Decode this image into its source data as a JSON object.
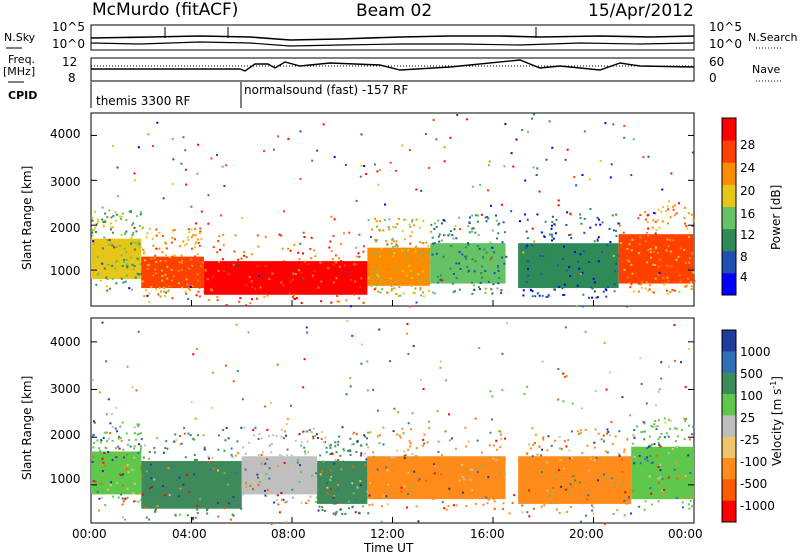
{
  "header": {
    "title": "McMurdo (fitACF)",
    "beam": "Beam 02",
    "date": "15/Apr/2012"
  },
  "top_panel": {
    "left_labels": {
      "nsky": "N.Sky",
      "freq": "Freq.",
      "freq_unit": "[MHz]",
      "cpid": "CPID"
    },
    "right_labels": {
      "nsearch": "N.Search",
      "nave": "Nave"
    },
    "nsky_ticks": [
      "10^5",
      "10^0"
    ],
    "freq_ticks": [
      "12",
      "8"
    ],
    "nave_ticks": [
      "60",
      "0"
    ],
    "cpid_segments": [
      "themis 3300 RF",
      "normalsound (fast) -157 RF"
    ]
  },
  "chart_data": [
    {
      "type": "heatmap",
      "panel": "power",
      "ylabel": "Slant Range [km]",
      "xlabel": "Time UT",
      "x_ticks": [
        "00:00",
        "04:00",
        "08:00",
        "12:00",
        "16:00",
        "20:00",
        "00:00"
      ],
      "y_ticks": [
        1000,
        2000,
        3000,
        4000
      ],
      "ylim": [
        200,
        4500
      ],
      "colorbar": {
        "label": "Power [dB]",
        "ticks": [
          "28",
          "24",
          "20",
          "16",
          "12",
          "8",
          "4"
        ],
        "colors": [
          "#0000ff",
          "#1f4fb0",
          "#2e8b57",
          "#66c266",
          "#e6c619",
          "#ff8c00",
          "#ff4000",
          "#ff0000"
        ]
      },
      "scatter_bands": [
        {
          "t0": 0.0,
          "t1": 2.0,
          "r0": 800,
          "r1": 1700,
          "level": 4
        },
        {
          "t0": 2.0,
          "t1": 4.5,
          "r0": 600,
          "r1": 1300,
          "level": 6
        },
        {
          "t0": 4.5,
          "t1": 11.0,
          "r0": 450,
          "r1": 1200,
          "level": 7
        },
        {
          "t0": 11.0,
          "t1": 13.5,
          "r0": 650,
          "r1": 1500,
          "level": 5
        },
        {
          "t0": 13.5,
          "t1": 16.5,
          "r0": 700,
          "r1": 1600,
          "level": 3
        },
        {
          "t0": 17.0,
          "t1": 21.0,
          "r0": 600,
          "r1": 1600,
          "level": 2
        },
        {
          "t0": 21.0,
          "t1": 24.0,
          "r0": 700,
          "r1": 1800,
          "level": 6
        }
      ]
    },
    {
      "type": "heatmap",
      "panel": "velocity",
      "ylabel": "Slant Range [km]",
      "xlabel": "Time UT",
      "x_ticks": [
        "00:00",
        "04:00",
        "08:00",
        "12:00",
        "16:00",
        "20:00",
        "00:00"
      ],
      "y_ticks": [
        1000,
        2000,
        3000,
        4000
      ],
      "ylim": [
        200,
        4500
      ],
      "colorbar": {
        "label": "Velocity [m s",
        "label_sup": "-1",
        "label_end": "]",
        "ticks": [
          "1000",
          "500",
          "100",
          "25",
          "-25",
          "-100",
          "-500",
          "-1000"
        ],
        "colors": [
          "#1e3c9b",
          "#2f6fb7",
          "#3e8a5a",
          "#5fc84c",
          "#bfbfbf",
          "#f0c46a",
          "#ff8c1a",
          "#ff5a00",
          "#ff0000"
        ]
      },
      "scatter_bands": [
        {
          "t0": 0.0,
          "t1": 2.0,
          "r0": 800,
          "r1": 1700,
          "color": "#5fc84c"
        },
        {
          "t0": 2.0,
          "t1": 6.0,
          "r0": 500,
          "r1": 1500,
          "color": "#3e8a5a"
        },
        {
          "t0": 6.0,
          "t1": 9.0,
          "r0": 800,
          "r1": 1600,
          "color": "#bfbfbf"
        },
        {
          "t0": 9.0,
          "t1": 11.0,
          "r0": 600,
          "r1": 1500,
          "color": "#3e8a5a"
        },
        {
          "t0": 11.0,
          "t1": 16.5,
          "r0": 700,
          "r1": 1600,
          "color": "#ff8c1a"
        },
        {
          "t0": 17.0,
          "t1": 21.5,
          "r0": 600,
          "r1": 1600,
          "color": "#ff8c1a"
        },
        {
          "t0": 21.5,
          "t1": 24.0,
          "r0": 700,
          "r1": 1800,
          "color": "#5fc84c"
        }
      ]
    }
  ]
}
